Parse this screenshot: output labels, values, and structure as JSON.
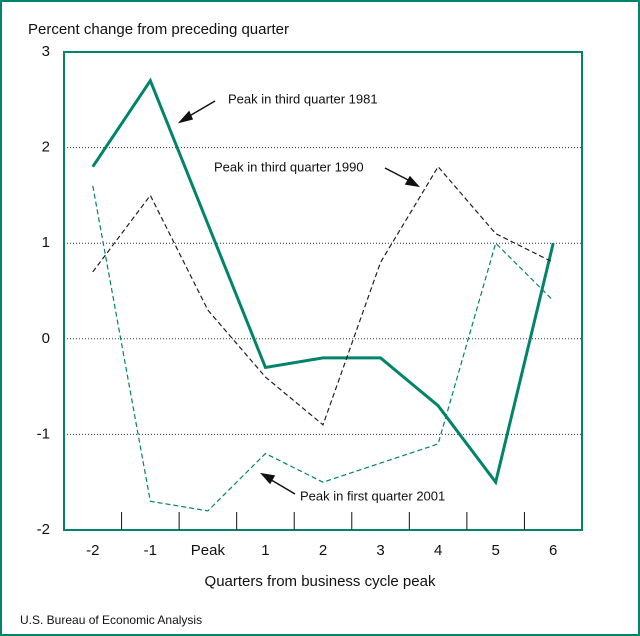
{
  "chart_data": {
    "type": "line",
    "title": "Percent change from preceding quarter",
    "x_label": "Quarters from business cycle peak",
    "source": "U.S. Bureau of Economic Analysis",
    "categories": [
      "-2",
      "-1",
      "Peak",
      "1",
      "2",
      "3",
      "4",
      "5",
      "6"
    ],
    "series": [
      {
        "name": "Peak in third quarter 1981",
        "color": "#00856a",
        "dashed": false,
        "values": [
          1.8,
          2.7,
          1.2,
          -0.3,
          -0.2,
          -0.2,
          -0.7,
          -1.5,
          1.0
        ]
      },
      {
        "name": "Peak in third quarter 1990",
        "color": "#222222",
        "dashed": true,
        "values": [
          0.7,
          1.5,
          0.3,
          -0.4,
          -0.9,
          0.8,
          1.8,
          1.1,
          0.8
        ]
      },
      {
        "name": "Peak in first quarter 2001",
        "color": "#00856a",
        "dashed": true,
        "values": [
          1.6,
          -1.7,
          -1.8,
          -1.2,
          -1.5,
          -1.3,
          -1.1,
          1.0,
          0.4
        ]
      }
    ],
    "ylim": [
      -2,
      3
    ],
    "yticks": [
      -2,
      -1,
      0,
      1,
      2,
      3
    ],
    "grid": true
  }
}
